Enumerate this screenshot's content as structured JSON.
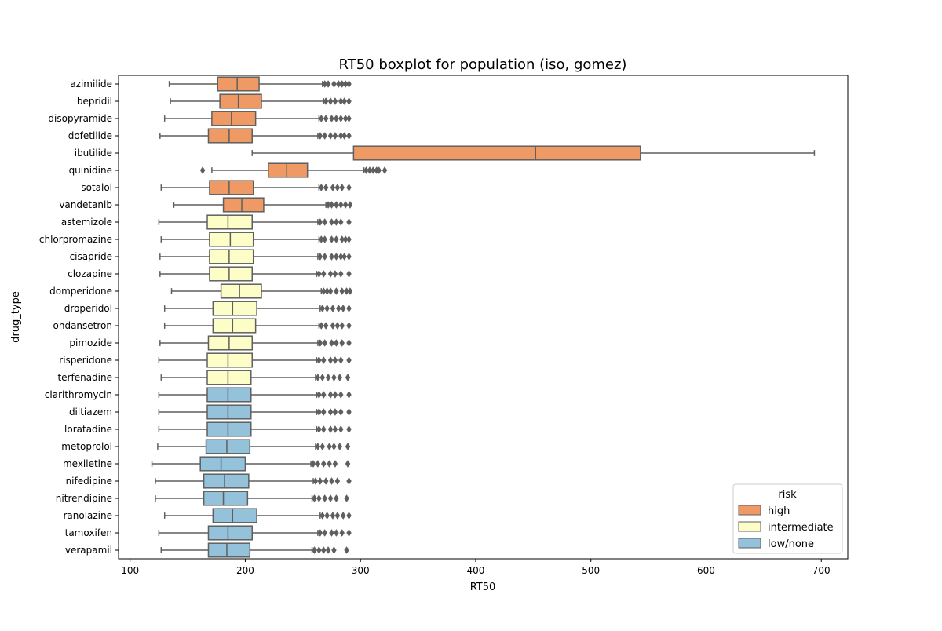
{
  "chart_data": {
    "type": "boxplot",
    "orientation": "horizontal",
    "title": "RT50 boxplot for population (iso, gomez)",
    "xlabel": "RT50",
    "ylabel": "drug_type",
    "xlim": [
      90,
      723
    ],
    "xticks": [
      100,
      200,
      300,
      400,
      500,
      600,
      700
    ],
    "grid": false,
    "legend": {
      "title": "risk",
      "placement": "lower-right",
      "entries": [
        {
          "label": "high",
          "color": "#ef9a64"
        },
        {
          "label": "intermediate",
          "color": "#fdfdc8"
        },
        {
          "label": "low/none",
          "color": "#93c2da"
        }
      ]
    },
    "colors": {
      "high": "#ef9a64",
      "intermediate": "#fdfdc8",
      "low/none": "#93c2da",
      "line": "#5f5f5f"
    },
    "boxes": [
      {
        "drug": "azimilide",
        "risk": "high",
        "whislo": 134,
        "q1": 176,
        "med": 193,
        "q3": 212,
        "whishi": 267,
        "fliers": [
          269,
          272,
          277,
          281,
          284,
          287,
          290
        ]
      },
      {
        "drug": "bepridil",
        "risk": "high",
        "whislo": 135,
        "q1": 178,
        "med": 194,
        "q3": 214,
        "whishi": 268,
        "fliers": [
          270,
          274,
          278,
          283,
          286,
          290
        ]
      },
      {
        "drug": "disopyramide",
        "risk": "high",
        "whislo": 130,
        "q1": 171,
        "med": 188,
        "q3": 209,
        "whishi": 264,
        "fliers": [
          266,
          270,
          275,
          279,
          283,
          287,
          290
        ]
      },
      {
        "drug": "dofetilide",
        "risk": "high",
        "whislo": 126,
        "q1": 168,
        "med": 186,
        "q3": 206,
        "whishi": 263,
        "fliers": [
          265,
          269,
          274,
          278,
          283,
          286,
          290
        ]
      },
      {
        "drug": "ibutilide",
        "risk": "high",
        "whislo": 206,
        "q1": 294,
        "med": 452,
        "q3": 543,
        "whishi": 694,
        "fliers": []
      },
      {
        "drug": "quinidine",
        "risk": "high",
        "whislo": 171,
        "q1": 220,
        "med": 236,
        "q3": 254,
        "whishi": 303,
        "fliers": [
          163,
          305,
          308,
          311,
          314,
          316,
          321
        ]
      },
      {
        "drug": "sotalol",
        "risk": "high",
        "whislo": 127,
        "q1": 169,
        "med": 186,
        "q3": 207,
        "whishi": 264,
        "fliers": [
          266,
          270,
          276,
          280,
          284,
          290
        ]
      },
      {
        "drug": "vandetanib",
        "risk": "high",
        "whislo": 138,
        "q1": 181,
        "med": 197,
        "q3": 216,
        "whishi": 270,
        "fliers": [
          272,
          275,
          279,
          283,
          287,
          291
        ]
      },
      {
        "drug": "astemizole",
        "risk": "intermediate",
        "whislo": 125,
        "q1": 167,
        "med": 185,
        "q3": 206,
        "whishi": 263,
        "fliers": [
          265,
          269,
          275,
          279,
          283,
          290
        ]
      },
      {
        "drug": "chlorpromazine",
        "risk": "intermediate",
        "whislo": 127,
        "q1": 169,
        "med": 187,
        "q3": 207,
        "whishi": 264,
        "fliers": [
          266,
          269,
          275,
          279,
          284,
          287,
          290
        ]
      },
      {
        "drug": "cisapride",
        "risk": "intermediate",
        "whislo": 126,
        "q1": 169,
        "med": 186,
        "q3": 207,
        "whishi": 263,
        "fliers": [
          265,
          269,
          275,
          279,
          283,
          286,
          290
        ]
      },
      {
        "drug": "clozapine",
        "risk": "intermediate",
        "whislo": 126,
        "q1": 169,
        "med": 186,
        "q3": 206,
        "whishi": 262,
        "fliers": [
          264,
          268,
          274,
          278,
          283,
          290
        ]
      },
      {
        "drug": "domperidone",
        "risk": "intermediate",
        "whislo": 136,
        "q1": 179,
        "med": 195,
        "q3": 214,
        "whishi": 266,
        "fliers": [
          268,
          271,
          274,
          279,
          284,
          288,
          291
        ]
      },
      {
        "drug": "droperidol",
        "risk": "intermediate",
        "whislo": 130,
        "q1": 172,
        "med": 189,
        "q3": 210,
        "whishi": 265,
        "fliers": [
          267,
          271,
          276,
          281,
          285,
          290
        ]
      },
      {
        "drug": "ondansetron",
        "risk": "intermediate",
        "whislo": 130,
        "q1": 172,
        "med": 189,
        "q3": 209,
        "whishi": 264,
        "fliers": [
          266,
          270,
          276,
          280,
          284,
          290
        ]
      },
      {
        "drug": "pimozide",
        "risk": "intermediate",
        "whislo": 126,
        "q1": 168,
        "med": 186,
        "q3": 206,
        "whishi": 263,
        "fliers": [
          265,
          269,
          275,
          279,
          284,
          290
        ]
      },
      {
        "drug": "risperidone",
        "risk": "intermediate",
        "whislo": 125,
        "q1": 167,
        "med": 185,
        "q3": 206,
        "whishi": 262,
        "fliers": [
          264,
          268,
          274,
          278,
          283,
          290
        ]
      },
      {
        "drug": "terfenadine",
        "risk": "intermediate",
        "whislo": 127,
        "q1": 167,
        "med": 185,
        "q3": 205,
        "whishi": 261,
        "fliers": [
          263,
          267,
          272,
          277,
          282,
          289
        ]
      },
      {
        "drug": "clarithromycin",
        "risk": "low/none",
        "whislo": 125,
        "q1": 167,
        "med": 185,
        "q3": 205,
        "whishi": 262,
        "fliers": [
          264,
          268,
          274,
          278,
          283,
          290
        ]
      },
      {
        "drug": "diltiazem",
        "risk": "low/none",
        "whislo": 125,
        "q1": 167,
        "med": 185,
        "q3": 205,
        "whishi": 262,
        "fliers": [
          264,
          268,
          274,
          278,
          283,
          290
        ]
      },
      {
        "drug": "loratadine",
        "risk": "low/none",
        "whislo": 125,
        "q1": 167,
        "med": 185,
        "q3": 205,
        "whishi": 262,
        "fliers": [
          264,
          268,
          274,
          278,
          283,
          290
        ]
      },
      {
        "drug": "metoprolol",
        "risk": "low/none",
        "whislo": 124,
        "q1": 166,
        "med": 184,
        "q3": 204,
        "whishi": 261,
        "fliers": [
          263,
          267,
          273,
          277,
          282,
          289
        ]
      },
      {
        "drug": "mexiletine",
        "risk": "low/none",
        "whislo": 119,
        "q1": 161,
        "med": 179,
        "q3": 200,
        "whishi": 257,
        "fliers": [
          259,
          263,
          268,
          273,
          278,
          289
        ]
      },
      {
        "drug": "nifedipine",
        "risk": "low/none",
        "whislo": 122,
        "q1": 164,
        "med": 182,
        "q3": 203,
        "whishi": 259,
        "fliers": [
          261,
          265,
          270,
          275,
          280,
          290
        ]
      },
      {
        "drug": "nitrendipine",
        "risk": "low/none",
        "whislo": 122,
        "q1": 164,
        "med": 181,
        "q3": 202,
        "whishi": 258,
        "fliers": [
          260,
          264,
          269,
          274,
          279,
          288
        ]
      },
      {
        "drug": "ranolazine",
        "risk": "low/none",
        "whislo": 130,
        "q1": 172,
        "med": 189,
        "q3": 210,
        "whishi": 265,
        "fliers": [
          267,
          271,
          276,
          280,
          285,
          290
        ]
      },
      {
        "drug": "tamoxifen",
        "risk": "low/none",
        "whislo": 125,
        "q1": 168,
        "med": 185,
        "q3": 206,
        "whishi": 263,
        "fliers": [
          265,
          269,
          275,
          279,
          284,
          290
        ]
      },
      {
        "drug": "verapamil",
        "risk": "low/none",
        "whislo": 127,
        "q1": 168,
        "med": 184,
        "q3": 204,
        "whishi": 258,
        "fliers": [
          260,
          264,
          268,
          272,
          277,
          288
        ]
      }
    ]
  }
}
